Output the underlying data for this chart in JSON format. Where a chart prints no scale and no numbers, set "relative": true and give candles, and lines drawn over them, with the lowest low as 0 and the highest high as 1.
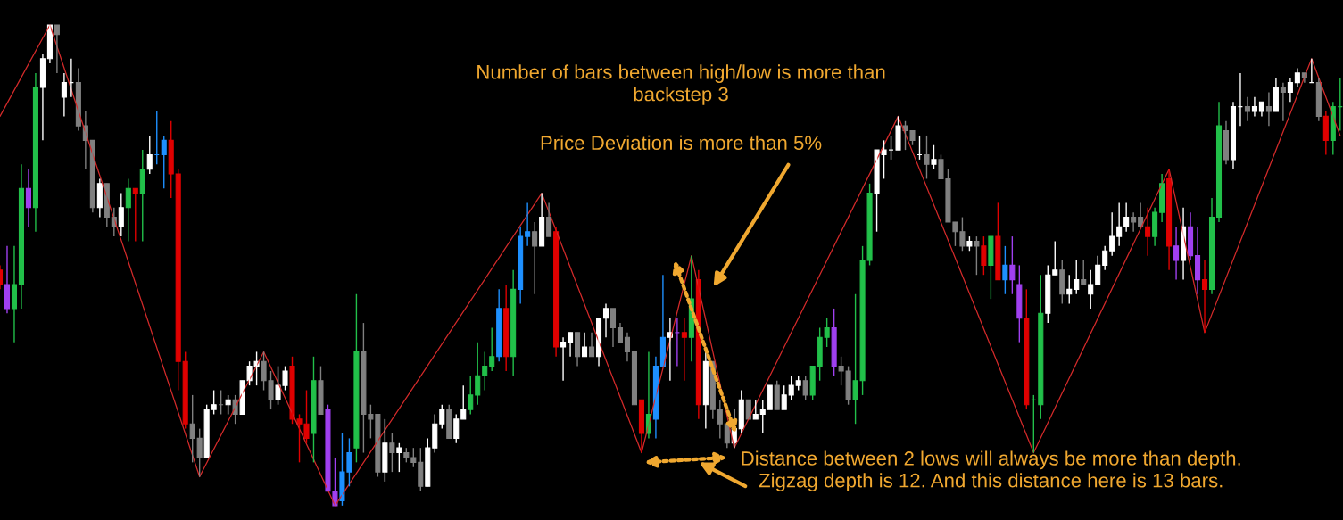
{
  "chart_data": {
    "type": "candlestick",
    "relative": true,
    "categories": [
      null,
      null,
      null,
      null,
      null,
      null,
      null,
      null,
      null,
      null,
      null,
      null,
      null,
      null,
      null,
      null,
      null,
      null,
      null,
      null,
      null,
      null,
      null,
      null,
      null,
      null,
      null,
      null,
      null,
      null,
      null,
      null,
      null,
      null,
      null,
      null,
      null,
      null,
      null,
      null,
      null,
      null,
      null,
      null,
      null,
      null,
      null,
      null,
      null,
      null,
      null,
      null,
      null,
      null,
      null,
      null,
      null,
      null,
      null,
      null,
      null,
      null,
      null,
      null,
      null,
      null,
      null,
      null,
      null,
      null,
      null,
      null,
      null,
      null,
      null,
      null,
      null,
      null,
      null,
      null,
      null,
      null,
      null,
      null,
      null,
      null,
      null,
      null,
      null,
      null,
      null,
      null,
      null,
      null,
      null,
      null,
      null,
      null,
      null,
      null,
      null,
      null,
      null,
      null,
      null,
      null,
      null,
      null,
      null,
      null,
      null,
      null,
      null,
      null,
      null,
      null,
      null,
      null,
      null,
      null,
      null,
      null,
      null,
      null,
      null,
      null,
      null,
      null,
      null,
      null,
      null,
      null,
      null,
      null,
      null,
      null,
      null,
      null,
      null,
      null,
      null,
      null,
      null,
      null,
      null,
      null,
      null,
      null,
      null,
      null,
      null,
      null,
      null,
      null,
      null,
      null,
      null,
      null,
      null,
      null,
      null,
      null,
      null,
      null,
      null,
      null,
      null,
      null,
      null,
      null,
      null,
      null,
      null,
      null,
      null,
      null,
      null,
      null,
      null,
      null,
      null,
      null,
      null,
      null,
      null,
      null,
      null,
      null,
      null
    ],
    "ohlc": [
      [
        0.49,
        0.5,
        0.45,
        0.46
      ],
      [
        0.46,
        0.54,
        0.4,
        0.41
      ],
      [
        0.41,
        0.54,
        0.34,
        0.46
      ],
      [
        0.46,
        0.71,
        0.41,
        0.66
      ],
      [
        0.66,
        0.7,
        0.58,
        0.62
      ],
      [
        0.62,
        0.9,
        0.57,
        0.87
      ],
      [
        0.87,
        0.94,
        0.76,
        0.93
      ],
      [
        0.93,
        1.0,
        0.92,
        1.0
      ],
      [
        1.0,
        1.0,
        0.9,
        0.98
      ],
      [
        0.85,
        0.9,
        0.81,
        0.88
      ],
      [
        0.88,
        0.93,
        0.85,
        0.88
      ],
      [
        0.88,
        0.91,
        0.78,
        0.79
      ],
      [
        0.79,
        0.82,
        0.7,
        0.76
      ],
      [
        0.76,
        0.76,
        0.61,
        0.62
      ],
      [
        0.62,
        0.68,
        0.6,
        0.67
      ],
      [
        0.67,
        0.67,
        0.58,
        0.6
      ],
      [
        0.6,
        0.62,
        0.56,
        0.58
      ],
      [
        0.58,
        0.65,
        0.56,
        0.62
      ],
      [
        0.62,
        0.68,
        0.55,
        0.66
      ],
      [
        0.66,
        0.66,
        0.55,
        0.65
      ],
      [
        0.65,
        0.74,
        0.55,
        0.7
      ],
      [
        0.7,
        0.77,
        0.69,
        0.73
      ],
      [
        0.73,
        0.82,
        0.71,
        0.73
      ],
      [
        0.73,
        0.77,
        0.66,
        0.76
      ],
      [
        0.76,
        0.8,
        0.64,
        0.69
      ],
      [
        0.69,
        0.7,
        0.24,
        0.3
      ],
      [
        0.3,
        0.32,
        0.16,
        0.17
      ],
      [
        0.17,
        0.23,
        0.09,
        0.14
      ],
      [
        0.14,
        0.16,
        0.06,
        0.1
      ],
      [
        0.1,
        0.21,
        0.1,
        0.2
      ],
      [
        0.2,
        0.24,
        0.19,
        0.21
      ],
      [
        0.21,
        0.24,
        0.19,
        0.21
      ],
      [
        0.21,
        0.23,
        0.19,
        0.22
      ],
      [
        0.22,
        0.23,
        0.17,
        0.19
      ],
      [
        0.19,
        0.26,
        0.19,
        0.26
      ],
      [
        0.26,
        0.3,
        0.25,
        0.29
      ],
      [
        0.29,
        0.32,
        0.25,
        0.3
      ],
      [
        0.3,
        0.32,
        0.24,
        0.26
      ],
      [
        0.26,
        0.28,
        0.2,
        0.22
      ],
      [
        0.22,
        0.29,
        0.21,
        0.25
      ],
      [
        0.25,
        0.29,
        0.24,
        0.28
      ],
      [
        0.29,
        0.31,
        0.17,
        0.18
      ],
      [
        0.18,
        0.19,
        0.09,
        0.17
      ],
      [
        0.17,
        0.24,
        0.13,
        0.14
      ],
      [
        0.15,
        0.31,
        0.09,
        0.26
      ],
      [
        0.26,
        0.29,
        0.19,
        0.19
      ],
      [
        0.2,
        0.21,
        0.03,
        0.03
      ],
      [
        0.03,
        0.1,
        0.0,
        0.0
      ],
      [
        0.01,
        0.15,
        0.0,
        0.07
      ],
      [
        0.07,
        0.14,
        0.04,
        0.11
      ],
      [
        0.12,
        0.44,
        0.09,
        0.32
      ],
      [
        0.32,
        0.38,
        0.11,
        0.19
      ],
      [
        0.19,
        0.21,
        0.14,
        0.18
      ],
      [
        0.19,
        0.19,
        0.06,
        0.07
      ],
      [
        0.07,
        0.18,
        0.05,
        0.13
      ],
      [
        0.13,
        0.15,
        0.07,
        0.11
      ],
      [
        0.11,
        0.13,
        0.07,
        0.12
      ],
      [
        0.11,
        0.12,
        0.09,
        0.1
      ],
      [
        0.1,
        0.12,
        0.08,
        0.09
      ],
      [
        0.09,
        0.12,
        0.03,
        0.04
      ],
      [
        0.04,
        0.14,
        0.04,
        0.12
      ],
      [
        0.12,
        0.19,
        0.11,
        0.17
      ],
      [
        0.17,
        0.21,
        0.16,
        0.2
      ],
      [
        0.2,
        0.21,
        0.14,
        0.14
      ],
      [
        0.14,
        0.19,
        0.13,
        0.18
      ],
      [
        0.18,
        0.25,
        0.18,
        0.2
      ],
      [
        0.2,
        0.27,
        0.19,
        0.23
      ],
      [
        0.23,
        0.34,
        0.21,
        0.27
      ],
      [
        0.27,
        0.32,
        0.24,
        0.29
      ],
      [
        0.29,
        0.37,
        0.28,
        0.31
      ],
      [
        0.31,
        0.45,
        0.3,
        0.41
      ],
      [
        0.41,
        0.46,
        0.28,
        0.31
      ],
      [
        0.31,
        0.49,
        0.27,
        0.45
      ],
      [
        0.45,
        0.58,
        0.42,
        0.56
      ],
      [
        0.56,
        0.63,
        0.54,
        0.57
      ],
      [
        0.57,
        0.59,
        0.44,
        0.54
      ],
      [
        0.54,
        0.65,
        0.54,
        0.6
      ],
      [
        0.6,
        0.63,
        0.56,
        0.56
      ],
      [
        0.57,
        0.58,
        0.31,
        0.33
      ],
      [
        0.33,
        0.35,
        0.26,
        0.34
      ],
      [
        0.34,
        0.36,
        0.31,
        0.36
      ],
      [
        0.36,
        0.36,
        0.29,
        0.31
      ],
      [
        0.31,
        0.36,
        0.31,
        0.33
      ],
      [
        0.33,
        0.36,
        0.31,
        0.31
      ],
      [
        0.31,
        0.39,
        0.29,
        0.39
      ],
      [
        0.39,
        0.42,
        0.35,
        0.41
      ],
      [
        0.41,
        0.41,
        0.33,
        0.37
      ],
      [
        0.37,
        0.38,
        0.34,
        0.34
      ],
      [
        0.35,
        0.36,
        0.3,
        0.32
      ],
      [
        0.32,
        0.32,
        0.21,
        0.21
      ],
      [
        0.22,
        0.22,
        0.11,
        0.15
      ],
      [
        0.15,
        0.32,
        0.14,
        0.19
      ],
      [
        0.18,
        0.31,
        0.14,
        0.29
      ],
      [
        0.29,
        0.48,
        0.29,
        0.35
      ],
      [
        0.35,
        0.39,
        0.26,
        0.36
      ],
      [
        0.36,
        0.39,
        0.29,
        0.36
      ],
      [
        0.36,
        0.39,
        0.26,
        0.35
      ],
      [
        0.35,
        0.52,
        0.3,
        0.43
      ],
      [
        0.47,
        0.49,
        0.18,
        0.21
      ],
      [
        0.21,
        0.32,
        0.16,
        0.3
      ],
      [
        0.3,
        0.3,
        0.18,
        0.2
      ],
      [
        0.2,
        0.22,
        0.14,
        0.17
      ],
      [
        0.17,
        0.17,
        0.12,
        0.13
      ],
      [
        0.13,
        0.2,
        0.12,
        0.16
      ],
      [
        0.16,
        0.24,
        0.15,
        0.22
      ],
      [
        0.22,
        0.22,
        0.18,
        0.18
      ],
      [
        0.18,
        0.22,
        0.18,
        0.19
      ],
      [
        0.19,
        0.22,
        0.15,
        0.2
      ],
      [
        0.2,
        0.25,
        0.2,
        0.25
      ],
      [
        0.25,
        0.26,
        0.2,
        0.2
      ],
      [
        0.2,
        0.25,
        0.2,
        0.23
      ],
      [
        0.23,
        0.27,
        0.22,
        0.25
      ],
      [
        0.25,
        0.27,
        0.24,
        0.26
      ],
      [
        0.26,
        0.27,
        0.22,
        0.23
      ],
      [
        0.23,
        0.29,
        0.22,
        0.29
      ],
      [
        0.29,
        0.37,
        0.26,
        0.35
      ],
      [
        0.35,
        0.39,
        0.33,
        0.37
      ],
      [
        0.37,
        0.41,
        0.27,
        0.29
      ],
      [
        0.29,
        0.31,
        0.25,
        0.28
      ],
      [
        0.28,
        0.29,
        0.21,
        0.22
      ],
      [
        0.22,
        0.44,
        0.17,
        0.26
      ],
      [
        0.26,
        0.54,
        0.23,
        0.51
      ],
      [
        0.51,
        0.67,
        0.5,
        0.65
      ],
      [
        0.65,
        0.74,
        0.57,
        0.74
      ],
      [
        0.73,
        0.76,
        0.68,
        0.74
      ],
      [
        0.74,
        0.77,
        0.72,
        0.74
      ],
      [
        0.74,
        0.81,
        0.74,
        0.79
      ],
      [
        0.79,
        0.8,
        0.74,
        0.78
      ],
      [
        0.78,
        0.78,
        0.75,
        0.76
      ],
      [
        0.73,
        0.77,
        0.72,
        0.73
      ],
      [
        0.73,
        0.77,
        0.68,
        0.71
      ],
      [
        0.71,
        0.75,
        0.7,
        0.72
      ],
      [
        0.72,
        0.73,
        0.68,
        0.68
      ],
      [
        0.68,
        0.7,
        0.59,
        0.59
      ],
      [
        0.59,
        0.59,
        0.54,
        0.57
      ],
      [
        0.57,
        0.6,
        0.53,
        0.54
      ],
      [
        0.54,
        0.56,
        0.53,
        0.55
      ],
      [
        0.55,
        0.56,
        0.48,
        0.54
      ],
      [
        0.54,
        0.56,
        0.48,
        0.5
      ],
      [
        0.5,
        0.56,
        0.43,
        0.56
      ],
      [
        0.56,
        0.63,
        0.47,
        0.47
      ],
      [
        0.47,
        0.54,
        0.44,
        0.5
      ],
      [
        0.5,
        0.56,
        0.44,
        0.47
      ],
      [
        0.46,
        0.5,
        0.34,
        0.39
      ],
      [
        0.39,
        0.45,
        0.2,
        0.21
      ],
      [
        0.22,
        0.23,
        0.11,
        0.22
      ],
      [
        0.21,
        0.48,
        0.18,
        0.4
      ],
      [
        0.4,
        0.5,
        0.38,
        0.48
      ],
      [
        0.48,
        0.55,
        0.48,
        0.49
      ],
      [
        0.49,
        0.51,
        0.42,
        0.44
      ],
      [
        0.44,
        0.48,
        0.42,
        0.45
      ],
      [
        0.45,
        0.51,
        0.44,
        0.47
      ],
      [
        0.47,
        0.51,
        0.46,
        0.46
      ],
      [
        0.44,
        0.49,
        0.41,
        0.46
      ],
      [
        0.46,
        0.52,
        0.46,
        0.5
      ],
      [
        0.5,
        0.54,
        0.49,
        0.53
      ],
      [
        0.53,
        0.61,
        0.52,
        0.56
      ],
      [
        0.56,
        0.63,
        0.54,
        0.58
      ],
      [
        0.58,
        0.63,
        0.57,
        0.6
      ],
      [
        0.6,
        0.61,
        0.57,
        0.59
      ],
      [
        0.6,
        0.63,
        0.58,
        0.58
      ],
      [
        0.58,
        0.62,
        0.52,
        0.56
      ],
      [
        0.56,
        0.62,
        0.54,
        0.61
      ],
      [
        0.61,
        0.69,
        0.59,
        0.67
      ],
      [
        0.68,
        0.7,
        0.49,
        0.54
      ],
      [
        0.54,
        0.58,
        0.47,
        0.51
      ],
      [
        0.51,
        0.62,
        0.47,
        0.58
      ],
      [
        0.58,
        0.61,
        0.51,
        0.52
      ],
      [
        0.52,
        0.58,
        0.44,
        0.47
      ],
      [
        0.47,
        0.51,
        0.36,
        0.45
      ],
      [
        0.45,
        0.64,
        0.44,
        0.6
      ],
      [
        0.6,
        0.84,
        0.59,
        0.79
      ],
      [
        0.78,
        0.8,
        0.71,
        0.72
      ],
      [
        0.72,
        0.84,
        0.7,
        0.83
      ],
      [
        0.83,
        0.9,
        0.79,
        0.83
      ],
      [
        0.83,
        0.85,
        0.8,
        0.82
      ],
      [
        0.82,
        0.85,
        0.81,
        0.83
      ],
      [
        0.82,
        0.84,
        0.81,
        0.84
      ],
      [
        0.83,
        0.86,
        0.79,
        0.82
      ],
      [
        0.82,
        0.89,
        0.82,
        0.87
      ],
      [
        0.87,
        0.88,
        0.8,
        0.86
      ],
      [
        0.86,
        0.89,
        0.84,
        0.88
      ],
      [
        0.88,
        0.91,
        0.87,
        0.9
      ],
      [
        0.9,
        0.9,
        0.88,
        0.89
      ],
      [
        0.88,
        0.93,
        0.88,
        0.88
      ],
      [
        0.88,
        0.89,
        0.8,
        0.81
      ],
      [
        0.81,
        0.82,
        0.73,
        0.76
      ],
      [
        0.76,
        0.84,
        0.73,
        0.83
      ],
      [
        0.83,
        0.89,
        0.78,
        0.83
      ]
    ],
    "colors": [
      "#e00000",
      "#a040f0",
      "#22c04a",
      "#22c04a",
      "#a040f0",
      "#22c04a",
      "#ffffff",
      "#ffffff",
      "#808080",
      "#ffffff",
      "#ffffff",
      "#808080",
      "#808080",
      "#808080",
      "#ffffff",
      "#808080",
      "#808080",
      "#ffffff",
      "#22c04a",
      "#e00000",
      "#22c04a",
      "#ffffff",
      "#1e90ff",
      "#1e90ff",
      "#e00000",
      "#e00000",
      "#e00000",
      "#808080",
      "#808080",
      "#ffffff",
      "#ffffff",
      "#808080",
      "#ffffff",
      "#808080",
      "#ffffff",
      "#ffffff",
      "#ffffff",
      "#808080",
      "#808080",
      "#ffffff",
      "#ffffff",
      "#e00000",
      "#e00000",
      "#e00000",
      "#22c04a",
      "#808080",
      "#a040f0",
      "#a040f0",
      "#1e90ff",
      "#1e90ff",
      "#22c04a",
      "#808080",
      "#808080",
      "#808080",
      "#ffffff",
      "#808080",
      "#ffffff",
      "#808080",
      "#808080",
      "#808080",
      "#ffffff",
      "#ffffff",
      "#ffffff",
      "#808080",
      "#ffffff",
      "#ffffff",
      "#22c04a",
      "#22c04a",
      "#22c04a",
      "#22c04a",
      "#1e90ff",
      "#e00000",
      "#22c04a",
      "#1e90ff",
      "#1e90ff",
      "#808080",
      "#ffffff",
      "#808080",
      "#e00000",
      "#ffffff",
      "#ffffff",
      "#808080",
      "#ffffff",
      "#808080",
      "#ffffff",
      "#ffffff",
      "#808080",
      "#808080",
      "#808080",
      "#808080",
      "#e00000",
      "#22c04a",
      "#1e90ff",
      "#1e90ff",
      "#ffffff",
      "#a040f0",
      "#e00000",
      "#22c04a",
      "#e00000",
      "#ffffff",
      "#808080",
      "#808080",
      "#808080",
      "#ffffff",
      "#ffffff",
      "#808080",
      "#ffffff",
      "#ffffff",
      "#ffffff",
      "#808080",
      "#ffffff",
      "#ffffff",
      "#ffffff",
      "#808080",
      "#22c04a",
      "#22c04a",
      "#22c04a",
      "#a040f0",
      "#808080",
      "#808080",
      "#22c04a",
      "#22c04a",
      "#22c04a",
      "#ffffff",
      "#ffffff",
      "#ffffff",
      "#ffffff",
      "#808080",
      "#808080",
      "#ffffff",
      "#808080",
      "#ffffff",
      "#808080",
      "#808080",
      "#808080",
      "#808080",
      "#ffffff",
      "#808080",
      "#e00000",
      "#22c04a",
      "#e00000",
      "#1e90ff",
      "#a040f0",
      "#a040f0",
      "#e00000",
      "#22c04a",
      "#22c04a",
      "#ffffff",
      "#ffffff",
      "#808080",
      "#ffffff",
      "#ffffff",
      "#808080",
      "#ffffff",
      "#ffffff",
      "#ffffff",
      "#ffffff",
      "#ffffff",
      "#ffffff",
      "#808080",
      "#808080",
      "#e00000",
      "#22c04a",
      "#22c04a",
      "#e00000",
      "#a040f0",
      "#ffffff",
      "#a040f0",
      "#a040f0",
      "#e00000",
      "#22c04a",
      "#22c04a",
      "#808080",
      "#ffffff",
      "#ffffff",
      "#808080",
      "#ffffff",
      "#ffffff",
      "#808080",
      "#ffffff",
      "#808080",
      "#ffffff",
      "#ffffff",
      "#808080",
      "#ffffff",
      "#808080",
      "#e00000",
      "#22c04a",
      "#22c04a"
    ],
    "series": [
      {
        "type": "line",
        "color": "#d42a2a",
        "values": [
          0.81,
          null,
          null,
          null,
          null,
          null,
          null,
          1.0,
          null,
          null,
          null,
          null,
          null,
          null,
          null,
          null,
          null,
          null,
          null,
          null,
          null,
          null,
          null,
          null,
          null,
          null,
          null,
          null,
          0.06,
          null,
          null,
          null,
          null,
          null,
          null,
          null,
          null,
          0.32,
          null,
          null,
          null,
          null,
          null,
          null,
          null,
          null,
          null,
          0.0,
          null,
          null,
          null,
          null,
          null,
          null,
          null,
          null,
          null,
          null,
          null,
          null,
          null,
          null,
          null,
          null,
          null,
          null,
          null,
          null,
          null,
          null,
          null,
          null,
          null,
          null,
          null,
          null,
          0.65,
          null,
          null,
          null,
          null,
          null,
          null,
          null,
          null,
          null,
          null,
          null,
          null,
          null,
          0.11,
          null,
          null,
          null,
          null,
          null,
          null,
          0.52,
          null,
          null,
          null,
          null,
          null,
          0.12,
          null,
          null,
          null,
          null,
          null,
          null,
          null,
          null,
          null,
          null,
          null,
          null,
          null,
          null,
          null,
          null,
          null,
          null,
          null,
          null,
          null,
          null,
          0.81,
          null,
          null,
          null,
          null,
          null,
          null,
          null,
          null,
          null,
          null,
          null,
          null,
          null,
          null,
          null,
          null,
          null,
          null,
          0.11,
          null,
          null,
          null,
          null,
          null,
          null,
          null,
          null,
          null,
          null,
          null,
          null,
          null,
          null,
          null,
          null,
          null,
          null,
          0.7,
          null,
          null,
          null,
          null,
          0.36,
          null,
          null,
          null,
          null,
          null,
          null,
          null,
          null,
          null,
          null,
          null,
          null,
          null,
          null,
          0.93,
          null,
          null,
          null,
          0.77
        ]
      }
    ],
    "annotations": [
      "Number of bars between high/low is more than\nbackstep 3",
      "Price Deviation is more than 5%",
      "Distance between 2 lows will always be more than depth.\nZigzag depth is 12. And this distance here is 13 bars."
    ]
  }
}
